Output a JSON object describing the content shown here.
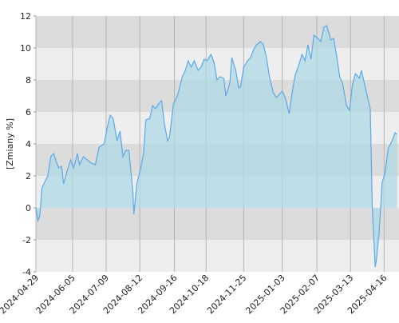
{
  "chart_data": {
    "type": "area",
    "y_label": "[Zmiany %]",
    "x": [
      "2024-04-29",
      "2024-05-01",
      "2024-05-03",
      "2024-05-05",
      "2024-05-07",
      "2024-05-11",
      "2024-05-14",
      "2024-05-17",
      "2024-05-19",
      "2024-05-22",
      "2024-05-25",
      "2024-05-27",
      "2024-05-30",
      "2024-06-03",
      "2024-06-06",
      "2024-06-10",
      "2024-06-12",
      "2024-06-16",
      "2024-06-20",
      "2024-06-24",
      "2024-06-28",
      "2024-07-02",
      "2024-07-07",
      "2024-07-10",
      "2024-07-13",
      "2024-07-16",
      "2024-07-20",
      "2024-07-23",
      "2024-07-26",
      "2024-07-29",
      "2024-08-01",
      "2024-08-05",
      "2024-08-06",
      "2024-08-09",
      "2024-08-13",
      "2024-08-16",
      "2024-08-18",
      "2024-08-22",
      "2024-08-25",
      "2024-08-28",
      "2024-09-01",
      "2024-09-03",
      "2024-09-06",
      "2024-09-09",
      "2024-09-11",
      "2024-09-15",
      "2024-09-19",
      "2024-09-24",
      "2024-09-27",
      "2024-09-30",
      "2024-10-03",
      "2024-10-06",
      "2024-10-10",
      "2024-10-13",
      "2024-10-16",
      "2024-10-19",
      "2024-10-23",
      "2024-10-26",
      "2024-10-29",
      "2024-11-01",
      "2024-11-05",
      "2024-11-07",
      "2024-11-11",
      "2024-11-13",
      "2024-11-17",
      "2024-11-20",
      "2024-11-22",
      "2024-11-25",
      "2024-11-29",
      "2024-12-02",
      "2024-12-05",
      "2024-12-08",
      "2024-12-12",
      "2024-12-15",
      "2024-12-18",
      "2024-12-21",
      "2024-12-25",
      "2024-12-28",
      "2024-12-31",
      "2025-01-03",
      "2025-01-06",
      "2025-01-10",
      "2025-01-13",
      "2025-01-16",
      "2025-01-19",
      "2025-01-23",
      "2025-01-26",
      "2025-01-29",
      "2025-02-01",
      "2025-02-04",
      "2025-02-08",
      "2025-02-11",
      "2025-02-14",
      "2025-02-17",
      "2025-02-21",
      "2025-02-24",
      "2025-02-27",
      "2025-03-02",
      "2025-03-05",
      "2025-03-09",
      "2025-03-12",
      "2025-03-15",
      "2025-03-18",
      "2025-03-22",
      "2025-03-24",
      "2025-03-27",
      "2025-03-30",
      "2025-04-02",
      "2025-04-04",
      "2025-04-07",
      "2025-04-08",
      "2025-04-11",
      "2025-04-14",
      "2025-04-17",
      "2025-04-20",
      "2025-04-24",
      "2025-04-27",
      "2025-04-29"
    ],
    "values": [
      0,
      -0.8,
      -0.5,
      1.2,
      1.5,
      2,
      3.2,
      3.4,
      3,
      2.5,
      2.6,
      1.5,
      2.2,
      3,
      2.5,
      3.4,
      2.7,
      3.2,
      3,
      2.8,
      2.7,
      3.8,
      4,
      5,
      5.8,
      5.6,
      4.2,
      4.8,
      3.2,
      3.6,
      3.6,
      1,
      -0.4,
      1.5,
      2.5,
      3.5,
      5.5,
      5.6,
      6.4,
      6.2,
      6.6,
      6.7,
      5.2,
      4.2,
      4.4,
      6.5,
      7,
      8.2,
      8.6,
      9.2,
      8.8,
      9.2,
      8.6,
      8.8,
      9.3,
      9.2,
      9.6,
      9.1,
      8,
      8.2,
      8.1,
      7,
      7.8,
      9.4,
      8.6,
      7.5,
      7.6,
      8.8,
      9.2,
      9.4,
      9.9,
      10.2,
      10.4,
      10.2,
      9.4,
      8.2,
      7.2,
      6.9,
      7.1,
      7.3,
      6.9,
      5.9,
      7.2,
      8.3,
      8.8,
      9.6,
      9.2,
      10.2,
      9.3,
      10.8,
      10.6,
      10.4,
      11.3,
      11.4,
      10.5,
      10.6,
      9.5,
      8.2,
      7.8,
      6.4,
      6.1,
      7.7,
      8.4,
      8.1,
      8.6,
      7.8,
      7,
      6.2,
      0,
      -3.7,
      -3.3,
      -1.5,
      1.6,
      2.2,
      3.7,
      4.2,
      4.7,
      4.6
    ],
    "line_color": "#5aaae8",
    "fill_color": "#add8e6",
    "xlim": [
      "2024-04-29",
      "2025-05-01"
    ],
    "xticks": [
      "2024-04-29",
      "2024-06-05",
      "2024-07-09",
      "2024-08-12",
      "2024-09-16",
      "2024-10-18",
      "2024-11-25",
      "2025-01-03",
      "2025-02-07",
      "2025-03-13",
      "2025-04-16"
    ],
    "ylim": [
      -4,
      12
    ],
    "yticks": [
      -4,
      -2,
      0,
      2,
      4,
      6,
      8,
      10,
      12
    ],
    "grid": true
  }
}
